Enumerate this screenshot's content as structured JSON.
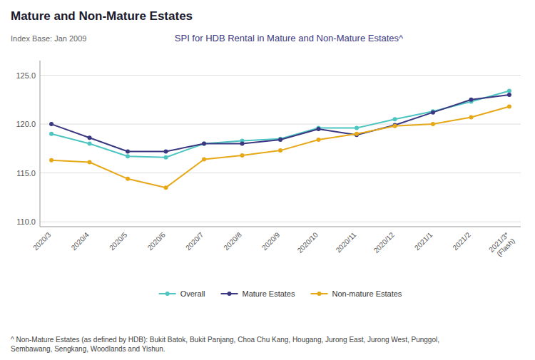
{
  "chart_data": {
    "type": "line",
    "title": "Mature and Non-Mature Estates",
    "subtitle": "SPI for HDB Rental in Mature and Non-Mature Estates^",
    "annotations": [
      "Index Base: Jan 2009",
      "^ Non-Mature Estates (as defined by HDB): Bukit Batok, Bukit Panjang, Choa Chu Kang, Hougang, Jurong East, Jurong West, Punggol,\nSembawang, Sengkang, Woodlands and Yishun."
    ],
    "categories": [
      "2020/3",
      "2020/4",
      "2020/5",
      "2020/6",
      "2020/7",
      "2020/8",
      "2020/9",
      "2020/10",
      "2020/11",
      "2020/12",
      "2021/1",
      "2021/2",
      "2021/3*\n(Flash)"
    ],
    "series": [
      {
        "name": "Overall",
        "color": "#4EC5C1",
        "marker": "circle",
        "values": [
          119.0,
          118.0,
          116.7,
          116.6,
          118.0,
          118.3,
          118.5,
          119.6,
          119.6,
          120.5,
          121.3,
          122.3,
          123.4
        ]
      },
      {
        "name": "Mature Estates",
        "color": "#3B3882",
        "marker": "circle",
        "values": [
          120.0,
          118.6,
          117.2,
          117.2,
          118.0,
          118.0,
          118.4,
          119.5,
          118.9,
          119.9,
          121.2,
          122.5,
          123.0
        ]
      },
      {
        "name": "Non-mature Estates",
        "color": "#E6A817",
        "marker": "circle",
        "values": [
          116.3,
          116.1,
          114.4,
          113.5,
          116.4,
          116.8,
          117.3,
          118.4,
          119.0,
          119.8,
          120.0,
          120.7,
          121.8
        ]
      }
    ],
    "ylim": [
      109.5,
      126.5
    ],
    "yticks": [
      {
        "value": 110.0,
        "label": "110.0"
      },
      {
        "value": 115.0,
        "label": "115.0"
      },
      {
        "value": 120.0,
        "label": "120.0"
      },
      {
        "value": 125.0,
        "label": "125.0"
      }
    ],
    "grid": true,
    "legend": "bottom"
  }
}
